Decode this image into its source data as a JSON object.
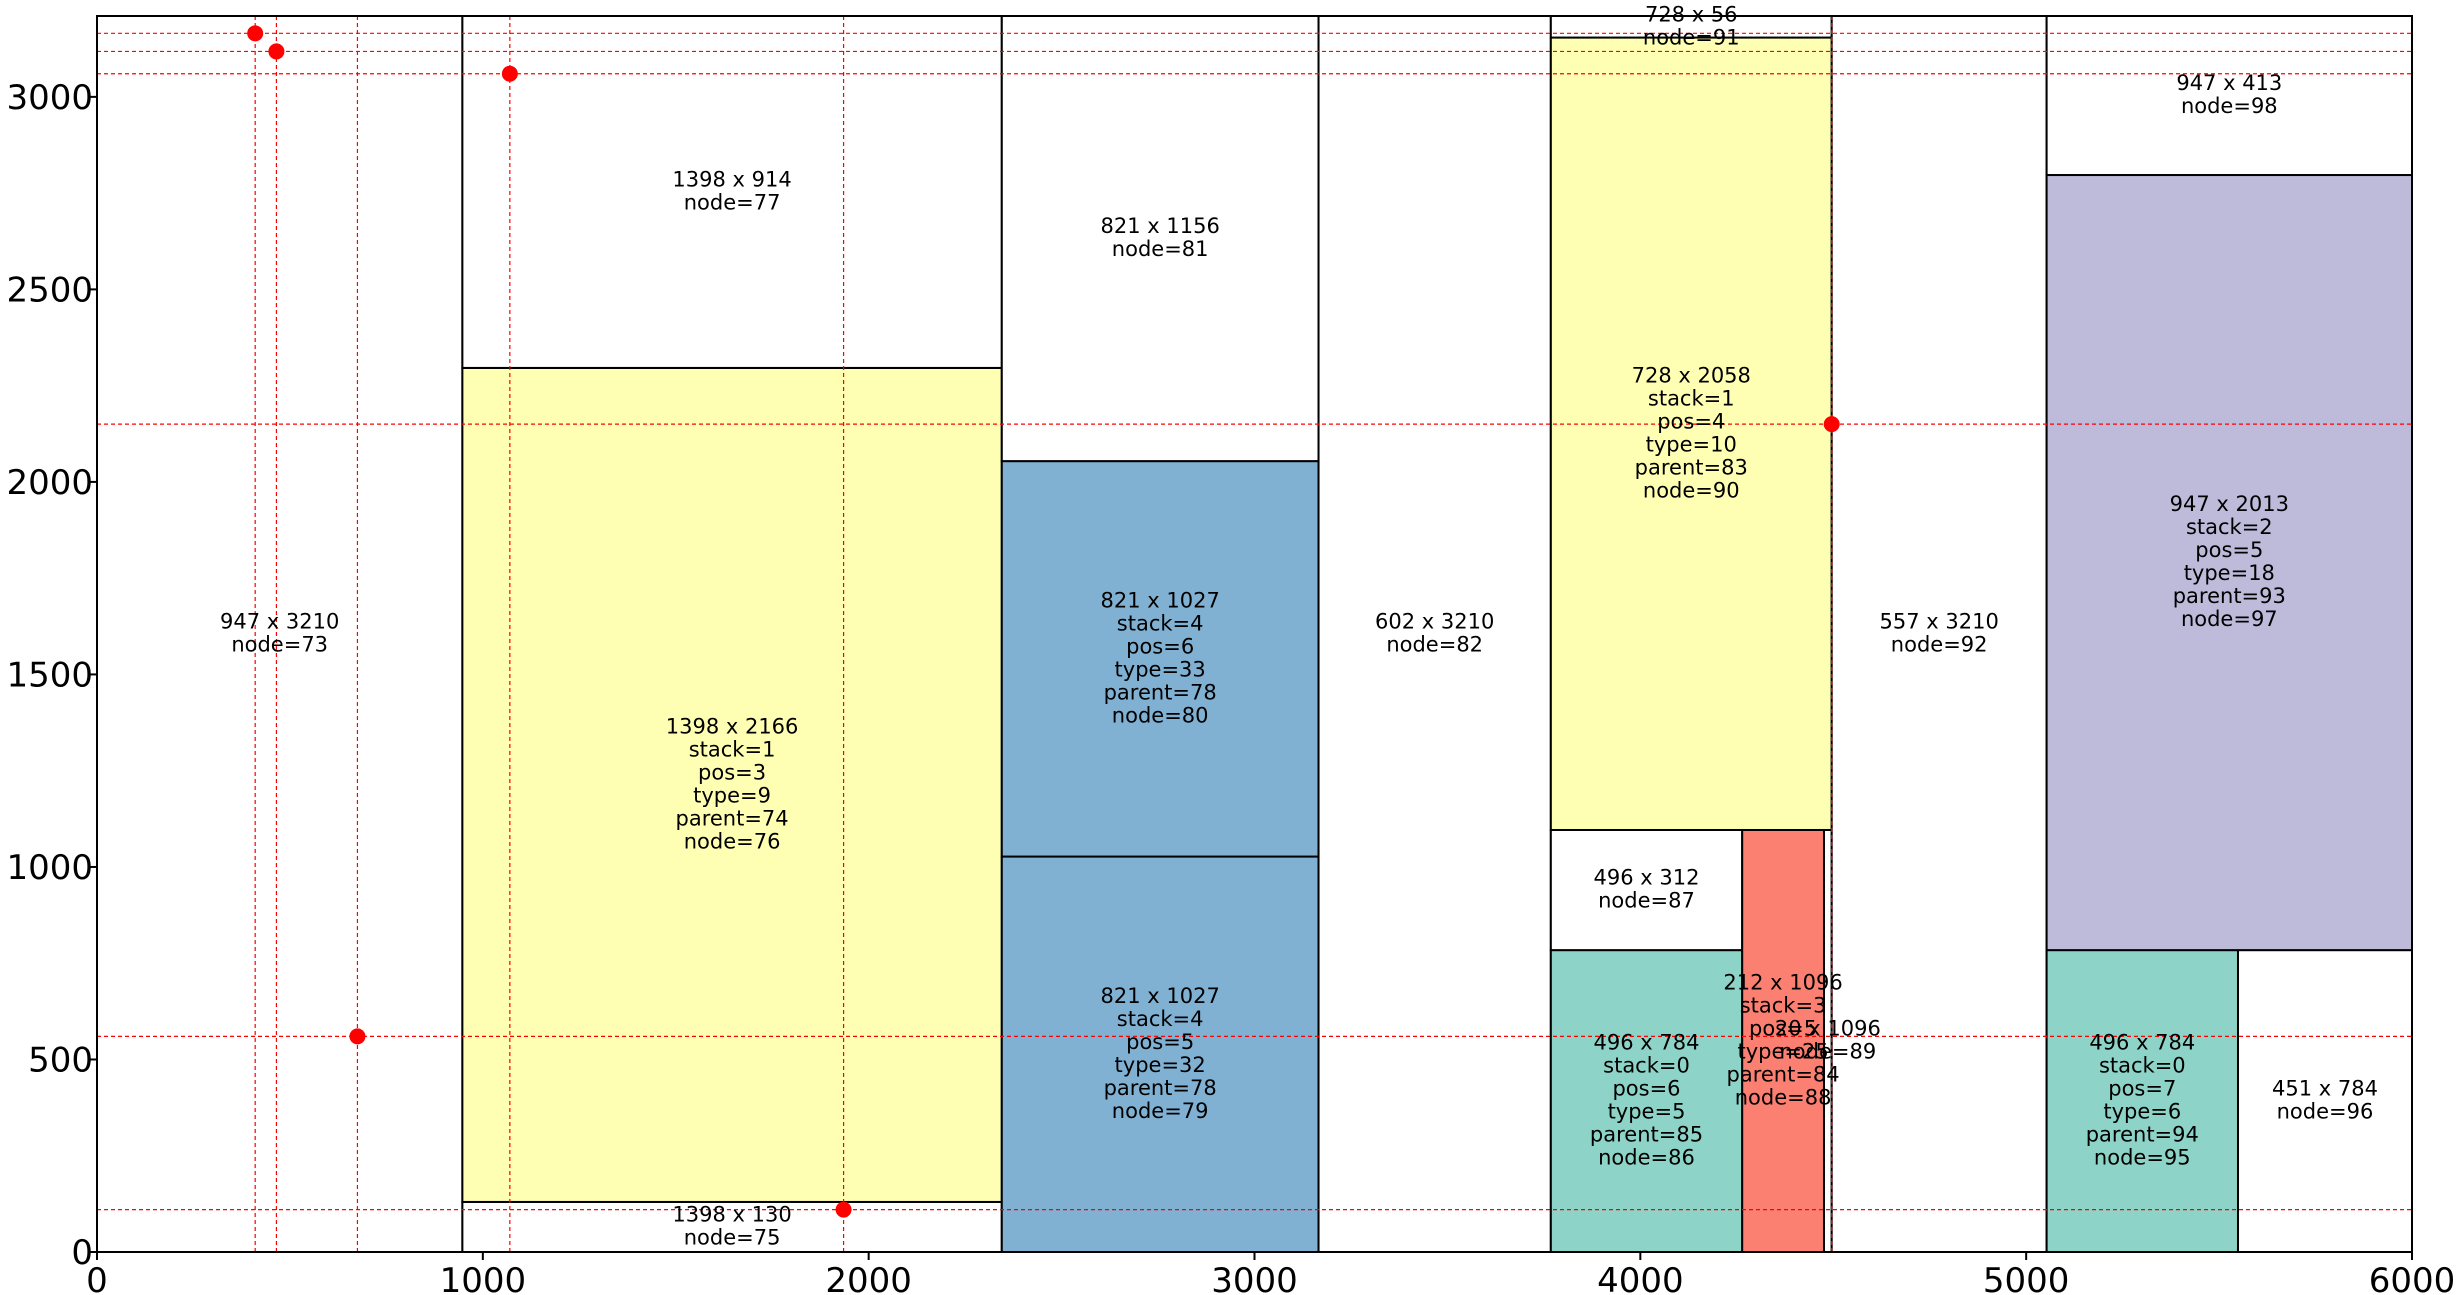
{
  "chart_data": {
    "type": "treemap",
    "title": "",
    "xlabel": "",
    "ylabel": "",
    "xlim": [
      0,
      6000
    ],
    "ylim": [
      0,
      3210
    ],
    "grid": false,
    "x_ticks": [
      {
        "value": 0,
        "label": "0"
      },
      {
        "value": 1000,
        "label": "1000"
      },
      {
        "value": 2000,
        "label": "2000"
      },
      {
        "value": 3000,
        "label": "3000"
      },
      {
        "value": 4000,
        "label": "4000"
      },
      {
        "value": 5000,
        "label": "5000"
      },
      {
        "value": 6000,
        "label": "6000"
      }
    ],
    "y_ticks": [
      {
        "value": 0,
        "label": "0"
      },
      {
        "value": 500,
        "label": "500"
      },
      {
        "value": 1000,
        "label": "1000"
      },
      {
        "value": 1500,
        "label": "1500"
      },
      {
        "value": 2000,
        "label": "2000"
      },
      {
        "value": 2500,
        "label": "2500"
      },
      {
        "value": 3000,
        "label": "3000"
      }
    ],
    "rectangles": [
      {
        "x": 0,
        "y": 0,
        "w": 947,
        "h": 3210,
        "fill": "#ffffff",
        "label": [
          "947 x 3210",
          "node=73"
        ]
      },
      {
        "x": 947,
        "y": 0,
        "w": 1398,
        "h": 130,
        "fill": "#ffffff",
        "label": [
          "1398 x 130",
          "node=75"
        ]
      },
      {
        "x": 947,
        "y": 130,
        "w": 1398,
        "h": 2166,
        "fill": "#ffffb3",
        "label": [
          "1398 x 2166",
          "stack=1",
          "pos=3",
          "type=9",
          "parent=74",
          "node=76"
        ]
      },
      {
        "x": 947,
        "y": 2296,
        "w": 1398,
        "h": 914,
        "fill": "#ffffff",
        "label": [
          "1398 x 914",
          "node=77"
        ]
      },
      {
        "x": 2345,
        "y": 0,
        "w": 821,
        "h": 1027,
        "fill": "#80b1d3",
        "label": [
          "821 x 1027",
          "stack=4",
          "pos=5",
          "type=32",
          "parent=78",
          "node=79"
        ]
      },
      {
        "x": 2345,
        "y": 1027,
        "w": 821,
        "h": 1027,
        "fill": "#80b1d3",
        "label": [
          "821 x 1027",
          "stack=4",
          "pos=6",
          "type=33",
          "parent=78",
          "node=80"
        ]
      },
      {
        "x": 2345,
        "y": 2054,
        "w": 821,
        "h": 1156,
        "fill": "#ffffff",
        "label": [
          "821 x 1156",
          "node=81"
        ]
      },
      {
        "x": 3166,
        "y": 0,
        "w": 602,
        "h": 3210,
        "fill": "#ffffff",
        "label": [
          "602 x 3210",
          "node=82"
        ]
      },
      {
        "x": 3768,
        "y": 0,
        "w": 496,
        "h": 784,
        "fill": "#8dd3c7",
        "label": [
          "496 x 784",
          "stack=0",
          "pos=6",
          "type=5",
          "parent=85",
          "node=86"
        ]
      },
      {
        "x": 3768,
        "y": 784,
        "w": 496,
        "h": 312,
        "fill": "#ffffff",
        "label": [
          "496 x 312",
          "node=87"
        ]
      },
      {
        "x": 4264,
        "y": 0,
        "w": 212,
        "h": 1096,
        "fill": "#fb8072",
        "label": [
          "212 x 1096",
          "stack=3",
          "pos=5",
          "type=25",
          "parent=84",
          "node=88"
        ]
      },
      {
        "x": 4476,
        "y": 0,
        "w": 20,
        "h": 1096,
        "fill": "#ffffff",
        "label": [
          "20 x 1096",
          "node=89"
        ]
      },
      {
        "x": 3768,
        "y": 1096,
        "w": 728,
        "h": 2058,
        "fill": "#ffffb3",
        "label": [
          "728 x 2058",
          "stack=1",
          "pos=4",
          "type=10",
          "parent=83",
          "node=90"
        ]
      },
      {
        "x": 3768,
        "y": 3154,
        "w": 728,
        "h": 56,
        "fill": "#ffffff",
        "label": [
          "728 x 56",
          "node=91"
        ]
      },
      {
        "x": 4496,
        "y": 0,
        "w": 557,
        "h": 3210,
        "fill": "#ffffff",
        "label": [
          "557 x 3210",
          "node=92"
        ]
      },
      {
        "x": 5053,
        "y": 0,
        "w": 496,
        "h": 784,
        "fill": "#8dd3c7",
        "label": [
          "496 x 784",
          "stack=0",
          "pos=7",
          "type=6",
          "parent=94",
          "node=95"
        ]
      },
      {
        "x": 5549,
        "y": 0,
        "w": 451,
        "h": 784,
        "fill": "#ffffff",
        "label": [
          "451 x 784",
          "node=96"
        ]
      },
      {
        "x": 5053,
        "y": 784,
        "w": 947,
        "h": 2013,
        "fill": "#bebada",
        "label": [
          "947 x 2013",
          "stack=2",
          "pos=5",
          "type=18",
          "parent=93",
          "node=97"
        ]
      },
      {
        "x": 5053,
        "y": 2797,
        "w": 947,
        "h": 413,
        "fill": "#ffffff",
        "label": [
          "947 x 413",
          "node=98"
        ]
      }
    ],
    "points": [
      {
        "x": 410,
        "y": 3165
      },
      {
        "x": 465,
        "y": 3118
      },
      {
        "x": 675,
        "y": 560
      },
      {
        "x": 1070,
        "y": 3060
      },
      {
        "x": 1935,
        "y": 110
      },
      {
        "x": 4496,
        "y": 2150
      }
    ],
    "point_color": "#ff0000",
    "guide_line_color": "#ff0000"
  }
}
